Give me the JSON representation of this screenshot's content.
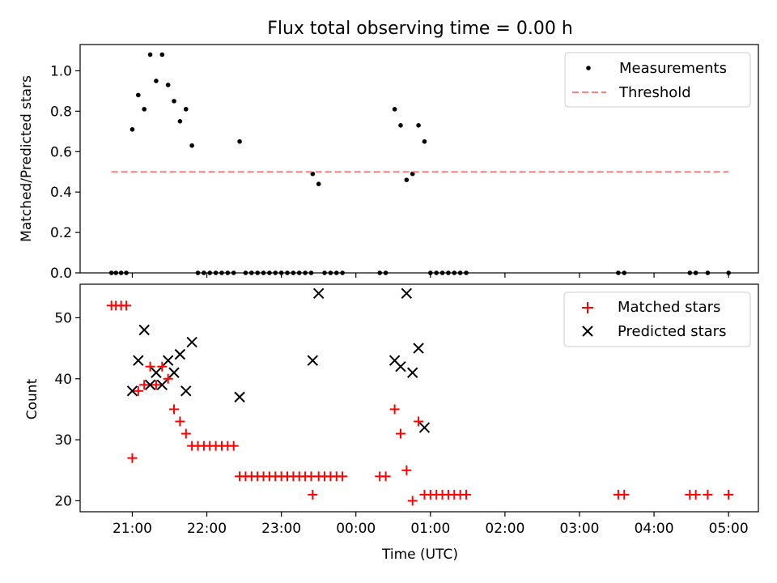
{
  "chart_data": [
    {
      "type": "scatter",
      "title": "Flux total observing time = 0.00 h",
      "xlabel": "",
      "ylabel": "Matched/Predicted stars",
      "x_unit": "hours after 00:00 UTC (negative = previous evening)",
      "xlim": [
        -3.7,
        5.4
      ],
      "ylim": [
        0,
        1.13
      ],
      "yticks": [
        0.0,
        0.2,
        0.4,
        0.6,
        0.8,
        1.0
      ],
      "ytick_labels": [
        "0.0",
        "0.2",
        "0.4",
        "0.6",
        "0.8",
        "1.0"
      ],
      "legend": {
        "position": "top-right",
        "entries": [
          "Measurements",
          "Threshold"
        ]
      },
      "series": [
        {
          "name": "Measurements",
          "marker": "dot",
          "color": "#000000",
          "points": [
            [
              -3.28,
              0.0
            ],
            [
              -3.22,
              0.0
            ],
            [
              -3.15,
              0.0
            ],
            [
              -3.08,
              0.0
            ],
            [
              -3.0,
              0.71
            ],
            [
              -2.92,
              0.88
            ],
            [
              -2.84,
              0.81
            ],
            [
              -2.76,
              1.08
            ],
            [
              -2.68,
              0.95
            ],
            [
              -2.6,
              1.08
            ],
            [
              -2.52,
              0.93
            ],
            [
              -2.44,
              0.85
            ],
            [
              -2.36,
              0.75
            ],
            [
              -2.28,
              0.81
            ],
            [
              -2.2,
              0.63
            ],
            [
              -2.12,
              0.0
            ],
            [
              -2.04,
              0.0
            ],
            [
              -1.96,
              0.0
            ],
            [
              -1.88,
              0.0
            ],
            [
              -1.8,
              0.0
            ],
            [
              -1.72,
              0.0
            ],
            [
              -1.64,
              0.0
            ],
            [
              -1.56,
              0.65
            ],
            [
              -1.48,
              0.0
            ],
            [
              -1.4,
              0.0
            ],
            [
              -1.32,
              0.0
            ],
            [
              -1.24,
              0.0
            ],
            [
              -1.16,
              0.0
            ],
            [
              -1.08,
              0.0
            ],
            [
              -1.0,
              0.0
            ],
            [
              -0.92,
              0.0
            ],
            [
              -0.84,
              0.0
            ],
            [
              -0.76,
              0.0
            ],
            [
              -0.68,
              0.0
            ],
            [
              -0.6,
              0.0
            ],
            [
              -0.58,
              0.49
            ],
            [
              -0.5,
              0.44
            ],
            [
              -0.42,
              0.0
            ],
            [
              -0.34,
              0.0
            ],
            [
              -0.26,
              0.0
            ],
            [
              -0.18,
              0.0
            ],
            [
              0.32,
              0.0
            ],
            [
              0.4,
              0.0
            ],
            [
              0.52,
              0.81
            ],
            [
              0.6,
              0.73
            ],
            [
              0.68,
              0.46
            ],
            [
              0.76,
              0.49
            ],
            [
              0.84,
              0.73
            ],
            [
              0.92,
              0.65
            ],
            [
              1.0,
              0.0
            ],
            [
              1.08,
              0.0
            ],
            [
              1.16,
              0.0
            ],
            [
              1.24,
              0.0
            ],
            [
              1.32,
              0.0
            ],
            [
              1.4,
              0.0
            ],
            [
              1.48,
              0.0
            ],
            [
              3.52,
              0.0
            ],
            [
              3.6,
              0.0
            ],
            [
              4.48,
              0.0
            ],
            [
              4.56,
              0.0
            ],
            [
              4.72,
              0.0
            ],
            [
              5.0,
              0.0
            ]
          ]
        },
        {
          "name": "Threshold",
          "style": "dashed-line",
          "color": "#ff7f7f",
          "x": [
            -3.28,
            5.0
          ],
          "y": [
            0.5,
            0.5
          ]
        }
      ]
    },
    {
      "type": "scatter",
      "title": "",
      "xlabel": "Time (UTC)",
      "ylabel": "Count",
      "xlim": [
        -3.7,
        5.4
      ],
      "ylim": [
        18.2,
        55.5
      ],
      "yticks": [
        20,
        30,
        40,
        50
      ],
      "ytick_labels": [
        "20",
        "30",
        "40",
        "50"
      ],
      "xticks": [
        -3,
        -2,
        -1,
        0,
        1,
        2,
        3,
        4,
        5
      ],
      "xtick_labels": [
        "21:00",
        "22:00",
        "23:00",
        "00:00",
        "01:00",
        "02:00",
        "03:00",
        "04:00",
        "05:00"
      ],
      "legend": {
        "position": "top-right",
        "entries": [
          "Matched stars",
          "Predicted stars"
        ]
      },
      "series": [
        {
          "name": "Matched stars",
          "marker": "plus",
          "color": "#ff0000",
          "points": [
            [
              -3.28,
              52
            ],
            [
              -3.22,
              52
            ],
            [
              -3.15,
              52
            ],
            [
              -3.08,
              52
            ],
            [
              -3.0,
              27
            ],
            [
              -2.92,
              38
            ],
            [
              -2.84,
              39
            ],
            [
              -2.76,
              42
            ],
            [
              -2.68,
              39
            ],
            [
              -2.6,
              42
            ],
            [
              -2.52,
              40
            ],
            [
              -2.44,
              35
            ],
            [
              -2.36,
              33
            ],
            [
              -2.28,
              31
            ],
            [
              -2.2,
              29
            ],
            [
              -2.12,
              29
            ],
            [
              -2.04,
              29
            ],
            [
              -1.96,
              29
            ],
            [
              -1.88,
              29
            ],
            [
              -1.8,
              29
            ],
            [
              -1.72,
              29
            ],
            [
              -1.64,
              29
            ],
            [
              -1.56,
              24
            ],
            [
              -1.48,
              24
            ],
            [
              -1.4,
              24
            ],
            [
              -1.32,
              24
            ],
            [
              -1.24,
              24
            ],
            [
              -1.16,
              24
            ],
            [
              -1.08,
              24
            ],
            [
              -1.0,
              24
            ],
            [
              -0.92,
              24
            ],
            [
              -0.84,
              24
            ],
            [
              -0.76,
              24
            ],
            [
              -0.68,
              24
            ],
            [
              -0.6,
              24
            ],
            [
              -0.58,
              21
            ],
            [
              -0.5,
              24
            ],
            [
              -0.42,
              24
            ],
            [
              -0.34,
              24
            ],
            [
              -0.26,
              24
            ],
            [
              -0.18,
              24
            ],
            [
              0.32,
              24
            ],
            [
              0.4,
              24
            ],
            [
              0.52,
              35
            ],
            [
              0.6,
              31
            ],
            [
              0.68,
              25
            ],
            [
              0.76,
              20
            ],
            [
              0.84,
              33
            ],
            [
              0.92,
              21
            ],
            [
              1.0,
              21
            ],
            [
              1.08,
              21
            ],
            [
              1.16,
              21
            ],
            [
              1.24,
              21
            ],
            [
              1.32,
              21
            ],
            [
              1.4,
              21
            ],
            [
              1.48,
              21
            ],
            [
              3.52,
              21
            ],
            [
              3.6,
              21
            ],
            [
              4.48,
              21
            ],
            [
              4.56,
              21
            ],
            [
              4.72,
              21
            ],
            [
              5.0,
              21
            ]
          ]
        },
        {
          "name": "Predicted stars",
          "marker": "x",
          "color": "#000000",
          "points": [
            [
              -3.0,
              38
            ],
            [
              -2.92,
              43
            ],
            [
              -2.84,
              48
            ],
            [
              -2.76,
              39
            ],
            [
              -2.68,
              41
            ],
            [
              -2.6,
              39
            ],
            [
              -2.52,
              43
            ],
            [
              -2.44,
              41
            ],
            [
              -2.36,
              44
            ],
            [
              -2.28,
              38
            ],
            [
              -2.2,
              46
            ],
            [
              -1.56,
              37
            ],
            [
              -0.58,
              43
            ],
            [
              -0.5,
              54
            ],
            [
              0.52,
              43
            ],
            [
              0.6,
              42
            ],
            [
              0.68,
              54
            ],
            [
              0.76,
              41
            ],
            [
              0.84,
              45
            ],
            [
              0.92,
              32
            ]
          ]
        }
      ]
    }
  ]
}
